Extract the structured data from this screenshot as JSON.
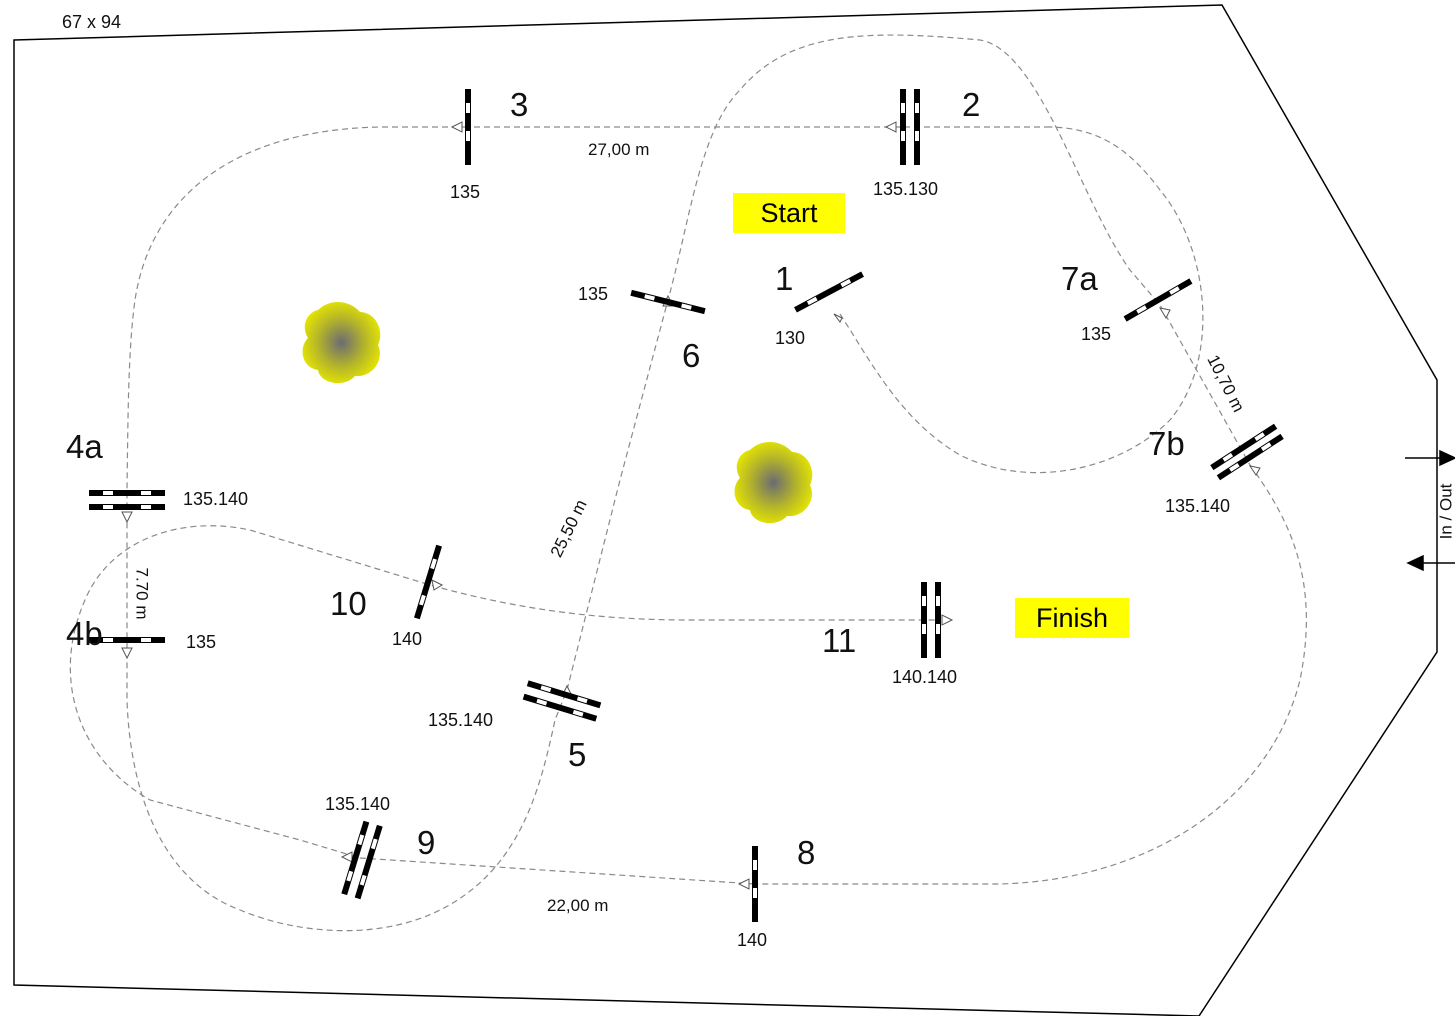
{
  "arena": {
    "size_label": "67 x 94",
    "gate_label": "In / Out"
  },
  "markers": {
    "start": "Start",
    "finish": "Finish"
  },
  "obstacles": {
    "o1": {
      "number": "1",
      "height": "130"
    },
    "o2": {
      "number": "2",
      "height": "135.130"
    },
    "o3": {
      "number": "3",
      "height": "135"
    },
    "o4a": {
      "number": "4a",
      "height": "135.140"
    },
    "o4b": {
      "number": "4b",
      "height": "135"
    },
    "o5": {
      "number": "5",
      "height": "135.140"
    },
    "o6": {
      "number": "6",
      "height": "135"
    },
    "o7a": {
      "number": "7a",
      "height": "135"
    },
    "o7b": {
      "number": "7b",
      "height": "135.140"
    },
    "o8": {
      "number": "8",
      "height": "140"
    },
    "o9": {
      "number": "9",
      "height": "135.140"
    },
    "o10": {
      "number": "10",
      "height": "140"
    },
    "o11": {
      "number": "11",
      "height": "140.140"
    }
  },
  "distances": {
    "d3_2": "27,00 m",
    "d6_5": "25,50 m",
    "d7a_7b": "10,70 m",
    "d4a_4b": "7.70 m",
    "d9_8": "22,00 m"
  },
  "colors": {
    "marker_fill": "#ffff00",
    "tree": "#d8d800",
    "rail_dark": "#000000",
    "route": "#8a8a8a"
  }
}
